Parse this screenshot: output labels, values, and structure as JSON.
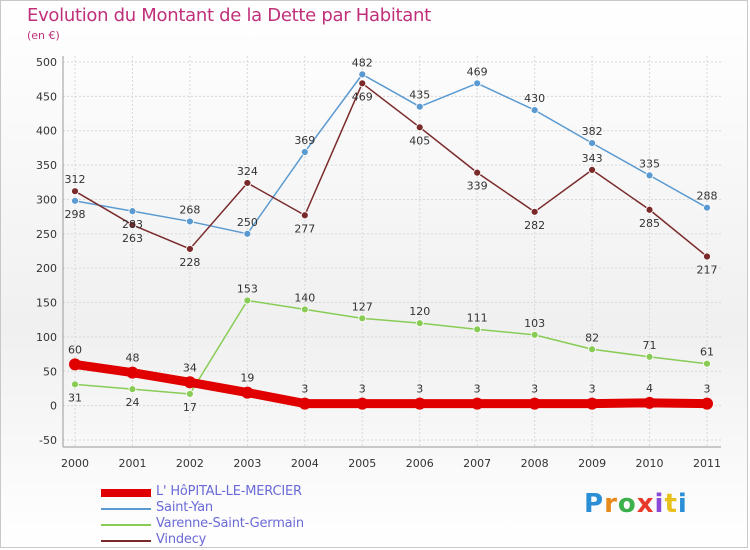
{
  "header": {
    "title": "Evolution du Montant de la Dette par Habitant",
    "subtitle": "(en €)"
  },
  "logo": {
    "text": "Proxiti",
    "colors": [
      "#2a8fd4",
      "#e88a1a",
      "#3cb04a",
      "#e83a2a",
      "#8a4ad8",
      "#e8c01a",
      "#2a8fd4"
    ]
  },
  "chart_data": {
    "type": "line",
    "title": "Evolution du Montant de la Dette par Habitant",
    "subtitle": "(en €)",
    "xlabel": "",
    "ylabel": "",
    "x": [
      "2000",
      "2001",
      "2002",
      "2003",
      "2004",
      "2005",
      "2006",
      "2007",
      "2008",
      "2009",
      "2010",
      "2011"
    ],
    "ylim": [
      -50,
      500
    ],
    "yticks": [
      "-50",
      "0",
      "50",
      "100",
      "150",
      "200",
      "250",
      "300",
      "350",
      "400",
      "450",
      "500"
    ],
    "grid": true,
    "legend_position": "bottom-left",
    "series": [
      {
        "name": "L' HôPITAL-LE-MERCIER",
        "color": "#e00000",
        "values": [
          60,
          48,
          34,
          19,
          3,
          3,
          3,
          3,
          3,
          3,
          4,
          3
        ]
      },
      {
        "name": "Saint-Yan",
        "color": "#5a9ad0",
        "values": [
          298,
          283,
          268,
          250,
          369,
          482,
          435,
          469,
          430,
          382,
          335,
          288
        ]
      },
      {
        "name": "Varenne-Saint-Germain",
        "color": "#88cc55",
        "values": [
          31,
          24,
          17,
          153,
          140,
          127,
          120,
          111,
          103,
          82,
          71,
          61
        ]
      },
      {
        "name": "Vindecy",
        "color": "#7a2a2a",
        "values": [
          312,
          263,
          228,
          324,
          277,
          469,
          405,
          339,
          282,
          343,
          285,
          217
        ]
      }
    ]
  }
}
